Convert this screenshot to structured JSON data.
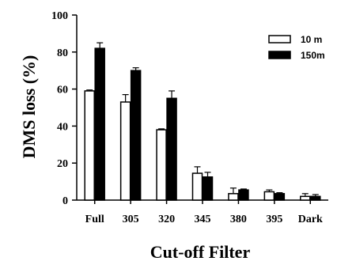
{
  "chart_data": {
    "type": "bar",
    "xlabel": "Cut-off Filter",
    "ylabel": "DMS loss (%)",
    "categories": [
      "Full",
      "305",
      "320",
      "345",
      "380",
      "395",
      "Dark"
    ],
    "ylim": [
      0,
      100
    ],
    "yticks": [
      0,
      20,
      40,
      60,
      80,
      100
    ],
    "grid": false,
    "legend_position": "top-right",
    "series": [
      {
        "name": "10 m",
        "color": "#ffffff",
        "values": [
          59,
          53,
          38,
          14.5,
          3.5,
          4.5,
          2
        ],
        "errors": [
          0.5,
          4,
          0.5,
          3.5,
          3,
          1,
          1.5
        ]
      },
      {
        "name": "150m",
        "color": "#000000",
        "values": [
          82,
          70,
          55,
          12.5,
          5.5,
          3.5,
          2
        ],
        "errors": [
          3,
          1.5,
          4,
          2.5,
          0.5,
          0.5,
          1
        ]
      }
    ]
  }
}
